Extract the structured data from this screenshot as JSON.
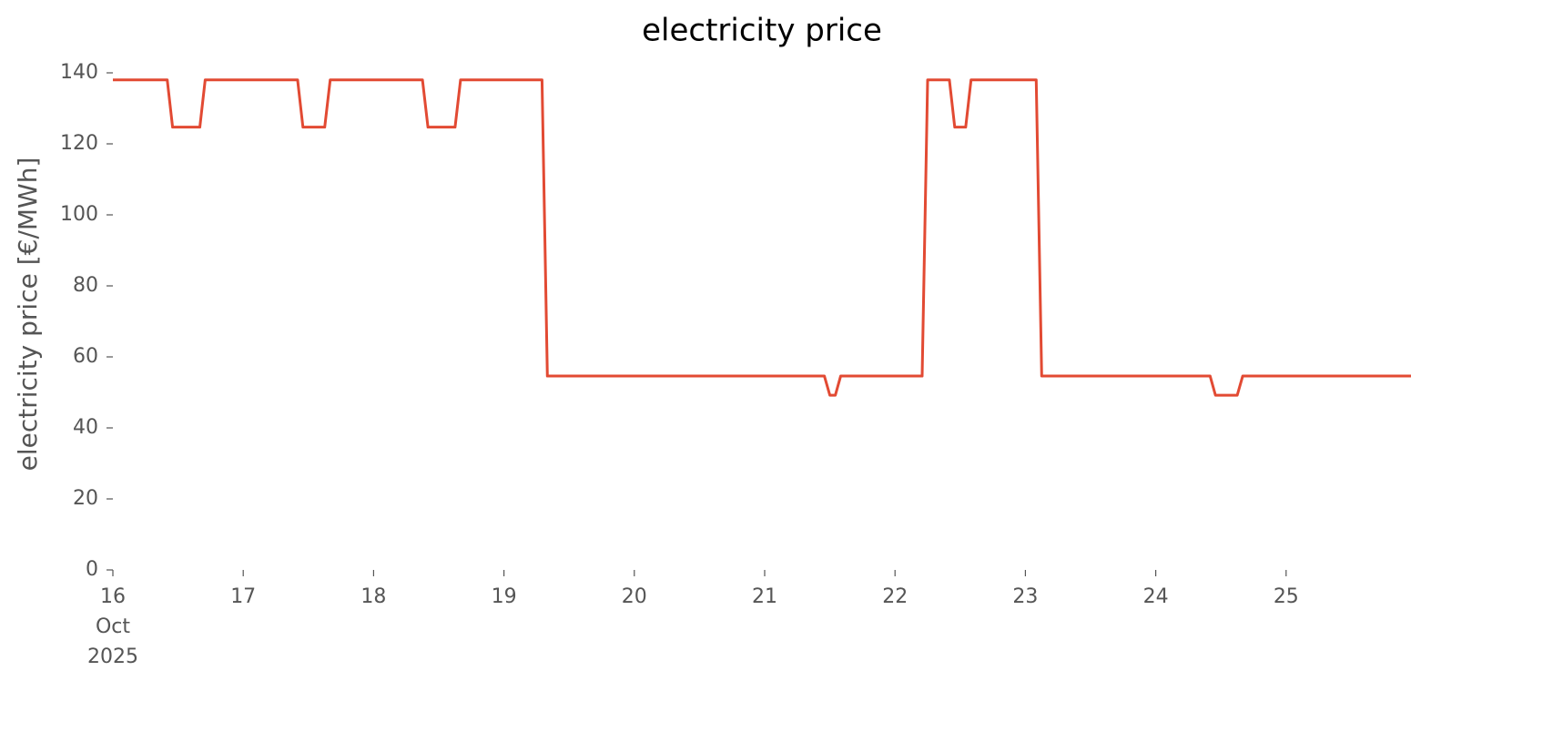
{
  "chart_data": {
    "type": "line",
    "title": "electricity price",
    "y_label": "electricity price [€/MWh]",
    "x": [
      16,
      16.417,
      16.458,
      16.667,
      16.708,
      17.417,
      17.458,
      17.625,
      17.667,
      18.375,
      18.417,
      18.625,
      18.667,
      19.292,
      19.333,
      21.458,
      21.5,
      21.542,
      21.583,
      22.208,
      22.25,
      22.417,
      22.458,
      22.542,
      22.583,
      23.083,
      23.125,
      24.417,
      24.458,
      24.625,
      24.667,
      25.958
    ],
    "series": [
      {
        "name": "electricity price",
        "color": "#e24a33",
        "values": [
          138,
          138,
          124.7,
          124.7,
          138,
          138,
          124.7,
          124.7,
          138,
          138,
          124.7,
          124.7,
          138,
          138,
          54.6,
          54.6,
          49.2,
          49.2,
          54.6,
          54.6,
          138,
          138,
          124.7,
          124.7,
          138,
          138,
          54.6,
          54.6,
          49.2,
          49.2,
          54.6,
          54.6
        ]
      }
    ],
    "xlim": [
      16,
      25.958
    ],
    "xticks": [
      {
        "value": 16,
        "label": "16\nOct\n2025"
      },
      17,
      18,
      19,
      20,
      21,
      22,
      23,
      24,
      25
    ],
    "ylim": [
      0,
      140
    ],
    "yticks": [
      0,
      20,
      40,
      60,
      80,
      100,
      120,
      140
    ],
    "grid": false
  }
}
